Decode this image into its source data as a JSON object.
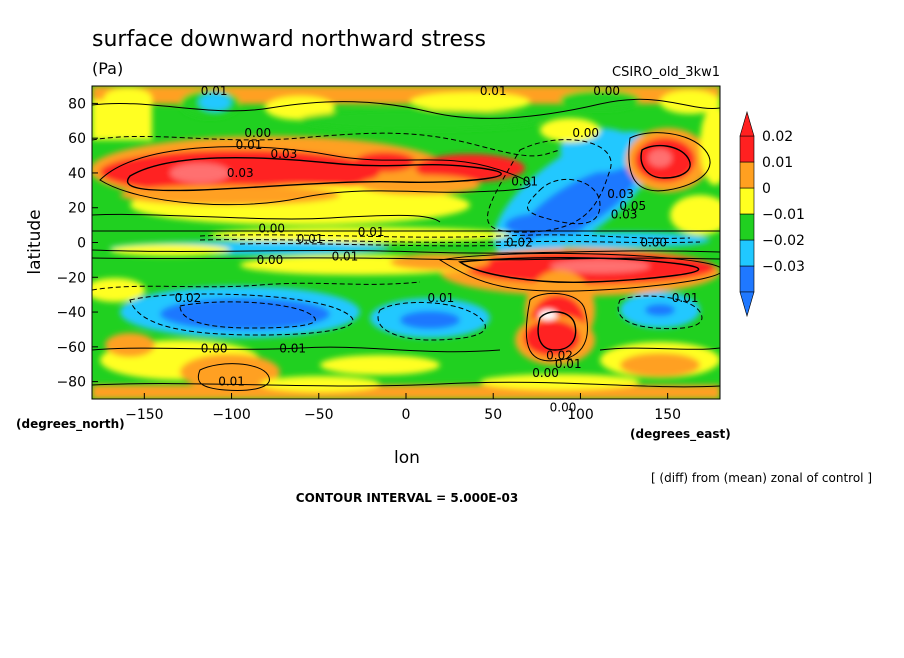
{
  "chart_data": {
    "type": "heatmap",
    "title": "surface downward northward stress",
    "units": "(Pa)",
    "source_label": "CSIRO_old_3kw1",
    "xlabel": "lon",
    "ylabel": "latitude",
    "x_unit_label": "(degrees_east)",
    "y_unit_label": "(degrees_north)",
    "xlim": [
      -180,
      180
    ],
    "ylim": [
      -90,
      90
    ],
    "x_ticks": [
      -150,
      -100,
      -50,
      0,
      50,
      100,
      150
    ],
    "y_ticks": [
      -80,
      -60,
      -40,
      -20,
      0,
      20,
      40,
      60,
      80
    ],
    "colorbar": {
      "levels": [
        -0.03,
        -0.02,
        -0.01,
        0,
        0.01,
        0.02
      ],
      "labels": [
        "−0.03",
        "−0.02",
        "−0.01",
        "0",
        "0.01",
        "0.02"
      ],
      "colors": [
        "#1f78ff",
        "#20c8ff",
        "#20d020",
        "#ffff20",
        "#ffa020",
        "#ff2020"
      ]
    },
    "contour_interval_text": "CONTOUR INTERVAL = 5.000E-03",
    "note": "[ (diff) from (mean) zonal of control ]",
    "contour_labels": [
      {
        "text": "0.01",
        "lon": -110,
        "lat": 87
      },
      {
        "text": "0.01",
        "lon": 50,
        "lat": 87
      },
      {
        "text": "0.00",
        "lon": 115,
        "lat": 87
      },
      {
        "text": "0.00",
        "lon": -85,
        "lat": 63
      },
      {
        "text": "0.01",
        "lon": -90,
        "lat": 56
      },
      {
        "text": "0.03",
        "lon": -70,
        "lat": 51
      },
      {
        "text": "0.03",
        "lon": -95,
        "lat": 40
      },
      {
        "text": "0.00",
        "lon": 103,
        "lat": 63
      },
      {
        "text": "0.01",
        "lon": 68,
        "lat": 35
      },
      {
        "text": "0.03",
        "lon": 123,
        "lat": 28
      },
      {
        "text": "0.05",
        "lon": 130,
        "lat": 21
      },
      {
        "text": "0.03",
        "lon": 125,
        "lat": 16
      },
      {
        "text": "0.00",
        "lon": -77,
        "lat": 8
      },
      {
        "text": "0.01",
        "lon": -55,
        "lat": 2
      },
      {
        "text": "0.01",
        "lon": -20,
        "lat": 6
      },
      {
        "text": "0.00",
        "lon": -78,
        "lat": -10
      },
      {
        "text": "0.01",
        "lon": -35,
        "lat": -8
      },
      {
        "text": "0.02",
        "lon": 65,
        "lat": 0
      },
      {
        "text": "0.00",
        "lon": 142,
        "lat": 0
      },
      {
        "text": "0.02",
        "lon": -125,
        "lat": -32
      },
      {
        "text": "0.01",
        "lon": 20,
        "lat": -32
      },
      {
        "text": "0.01",
        "lon": 160,
        "lat": -32
      },
      {
        "text": "0.00",
        "lon": -110,
        "lat": -61
      },
      {
        "text": "0.01",
        "lon": -65,
        "lat": -61
      },
      {
        "text": "0.02",
        "lon": 88,
        "lat": -65
      },
      {
        "text": "0.01",
        "lon": 93,
        "lat": -70
      },
      {
        "text": "0.00",
        "lon": 80,
        "lat": -75
      },
      {
        "text": "0.01",
        "lon": -100,
        "lat": -80
      },
      {
        "text": "0.00",
        "lon": 90,
        "lat": -95
      }
    ]
  }
}
